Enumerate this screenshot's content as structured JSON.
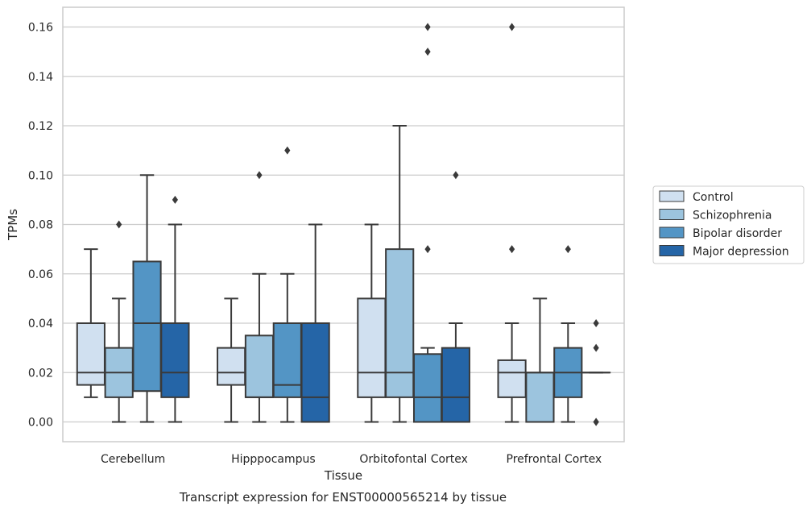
{
  "chart_data": {
    "type": "boxplot",
    "xlabel": "Tissue",
    "ylabel": "TPMs",
    "caption": "Transcript expression for ENST00000565214 by tissue",
    "ylim": [
      -0.008,
      0.168
    ],
    "yticks": [
      "0.00",
      "0.02",
      "0.04",
      "0.06",
      "0.08",
      "0.10",
      "0.12",
      "0.14",
      "0.16"
    ],
    "ytick_values": [
      0,
      0.02,
      0.04,
      0.06,
      0.08,
      0.1,
      0.12,
      0.14,
      0.16
    ],
    "grid": "horizontal",
    "legend_position": "right",
    "categories": [
      "Cerebellum",
      "Hipppocampus",
      "Orbitofontal Cortex",
      "Prefrontal Cortex"
    ],
    "series": [
      {
        "name": "Control",
        "color": "#d0e0f0",
        "boxes": [
          {
            "whislo": 0.01,
            "q1": 0.015,
            "med": 0.02,
            "q3": 0.04,
            "whishi": 0.07,
            "fliers": []
          },
          {
            "whislo": 0.0,
            "q1": 0.015,
            "med": 0.02,
            "q3": 0.03,
            "whishi": 0.05,
            "fliers": []
          },
          {
            "whislo": 0.0,
            "q1": 0.01,
            "med": 0.02,
            "q3": 0.05,
            "whishi": 0.08,
            "fliers": []
          },
          {
            "whislo": 0.0,
            "q1": 0.01,
            "med": 0.02,
            "q3": 0.025,
            "whishi": 0.04,
            "fliers": [
              0.07,
              0.16
            ]
          }
        ]
      },
      {
        "name": "Schizophrenia",
        "color": "#9cc4de",
        "boxes": [
          {
            "whislo": 0.0,
            "q1": 0.01,
            "med": 0.02,
            "q3": 0.03,
            "whishi": 0.05,
            "fliers": [
              0.08
            ]
          },
          {
            "whislo": 0.0,
            "q1": 0.01,
            "med": 0.01,
            "q3": 0.035,
            "whishi": 0.06,
            "fliers": [
              0.1
            ]
          },
          {
            "whislo": 0.0,
            "q1": 0.01,
            "med": 0.02,
            "q3": 0.07,
            "whishi": 0.12,
            "fliers": []
          },
          {
            "whislo": 0.0,
            "q1": 0.0,
            "med": 0.02,
            "q3": 0.02,
            "whishi": 0.05,
            "fliers": []
          }
        ]
      },
      {
        "name": "Bipolar disorder",
        "color": "#5395c5",
        "boxes": [
          {
            "whislo": 0.0,
            "q1": 0.0125,
            "med": 0.04,
            "q3": 0.065,
            "whishi": 0.1,
            "fliers": []
          },
          {
            "whislo": 0.0,
            "q1": 0.01,
            "med": 0.015,
            "q3": 0.04,
            "whishi": 0.06,
            "fliers": [
              0.11
            ]
          },
          {
            "whislo": 0.0,
            "q1": 0.0,
            "med": 0.01,
            "q3": 0.0275,
            "whishi": 0.03,
            "fliers": [
              0.07,
              0.15,
              0.16
            ]
          },
          {
            "whislo": 0.0,
            "q1": 0.01,
            "med": 0.02,
            "q3": 0.03,
            "whishi": 0.04,
            "fliers": [
              0.07
            ]
          }
        ]
      },
      {
        "name": "Major depression",
        "color": "#2565a7",
        "boxes": [
          {
            "whislo": 0.0,
            "q1": 0.01,
            "med": 0.02,
            "q3": 0.04,
            "whishi": 0.08,
            "fliers": [
              0.09
            ]
          },
          {
            "whislo": 0.0,
            "q1": 0.0,
            "med": 0.01,
            "q3": 0.04,
            "whishi": 0.08,
            "fliers": []
          },
          {
            "whislo": 0.0,
            "q1": 0.0,
            "med": 0.01,
            "q3": 0.03,
            "whishi": 0.04,
            "fliers": [
              0.1
            ]
          },
          {
            "whislo": 0.02,
            "q1": 0.02,
            "med": 0.02,
            "q3": 0.02,
            "whishi": 0.02,
            "fliers": [
              0.0,
              0.0,
              0.03,
              0.04
            ]
          }
        ]
      }
    ]
  }
}
